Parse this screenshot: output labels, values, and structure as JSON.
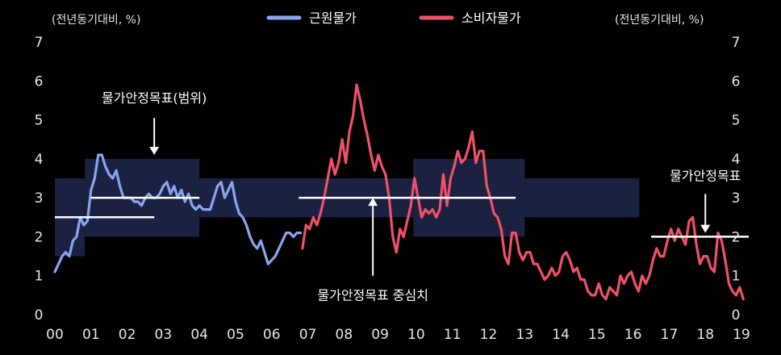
{
  "chart_data": {
    "type": "line",
    "title": "",
    "unit_left": "(전년동기대비, %)",
    "unit_right": "(전년동기대비, %)",
    "ylim": [
      0,
      7
    ],
    "xlim": [
      2000.0,
      2019.2
    ],
    "y_ticks": [
      "0",
      "1",
      "2",
      "3",
      "4",
      "5",
      "6",
      "7"
    ],
    "x_ticks": [
      {
        "label": "00",
        "value": 2000
      },
      {
        "label": "01",
        "value": 2001
      },
      {
        "label": "02",
        "value": 2002
      },
      {
        "label": "03",
        "value": 2003
      },
      {
        "label": "04",
        "value": 2004
      },
      {
        "label": "05",
        "value": 2005
      },
      {
        "label": "06",
        "value": 2006
      },
      {
        "label": "07",
        "value": 2007
      },
      {
        "label": "08",
        "value": 2008
      },
      {
        "label": "09",
        "value": 2009
      },
      {
        "label": "10",
        "value": 2010
      },
      {
        "label": "11",
        "value": 2011
      },
      {
        "label": "12",
        "value": 2012
      },
      {
        "label": "13",
        "value": 2013
      },
      {
        "label": "14",
        "value": 2014
      },
      {
        "label": "15",
        "value": 2015
      },
      {
        "label": "16",
        "value": 2016
      },
      {
        "label": "17",
        "value": 2017
      },
      {
        "label": "18",
        "value": 2018
      },
      {
        "label": "19",
        "value": 2019
      }
    ],
    "legend": [
      {
        "name": "근원물가",
        "color": "#8aa4f0"
      },
      {
        "name": "소비자물가",
        "color": "#f0506a"
      }
    ],
    "target_bands": [
      {
        "x0": 2000.0,
        "x1": 2000.83,
        "low": 1.5,
        "high": 3.5
      },
      {
        "x0": 2000.83,
        "x1": 2004.0,
        "low": 2.0,
        "high": 4.0
      },
      {
        "x0": 2004.0,
        "x1": 2006.83,
        "low": 2.5,
        "high": 3.5
      },
      {
        "x0": 2006.83,
        "x1": 2009.92,
        "low": 2.5,
        "high": 3.5
      },
      {
        "x0": 2009.92,
        "x1": 2013.0,
        "low": 2.0,
        "high": 4.0
      },
      {
        "x0": 2013.0,
        "x1": 2016.17,
        "low": 2.5,
        "high": 3.5
      }
    ],
    "target_lines": [
      {
        "x0": 2000.0,
        "x1": 2002.75,
        "y": 2.5
      },
      {
        "x0": 2001.0,
        "x1": 2004.0,
        "y": 3.0
      },
      {
        "x0": 2006.75,
        "x1": 2012.75,
        "y": 3.0
      },
      {
        "x0": 2016.5,
        "x1": 2019.2,
        "y": 2.0
      }
    ],
    "annotations": [
      {
        "text": "물가안정목표(범위)",
        "x": 2002.75,
        "y": 5.45,
        "arrow_from": 5.05,
        "arrow_to": 4.1
      },
      {
        "text": "물가안정목표 중심치",
        "x": 2008.8,
        "y": 0.38,
        "arrow_from": 1.0,
        "arrow_to": 3.0
      },
      {
        "text": "물가안정목표",
        "x": 2018.0,
        "y": 3.45,
        "arrow_from": 3.1,
        "arrow_to": 2.1
      }
    ],
    "series": [
      {
        "name": "근원물가",
        "color": "#8aa4f0",
        "x": [
          2000.0,
          2000.1,
          2000.2,
          2000.3,
          2000.4,
          2000.5,
          2000.6,
          2000.7,
          2000.8,
          2000.9,
          2001.0,
          2001.1,
          2001.2,
          2001.3,
          2001.4,
          2001.5,
          2001.6,
          2001.7,
          2001.8,
          2001.9,
          2002.0,
          2002.1,
          2002.2,
          2002.3,
          2002.4,
          2002.5,
          2002.6,
          2002.7,
          2002.8,
          2002.9,
          2003.0,
          2003.1,
          2003.2,
          2003.3,
          2003.4,
          2003.5,
          2003.6,
          2003.7,
          2003.8,
          2003.9,
          2004.0,
          2004.1,
          2004.2,
          2004.3,
          2004.4,
          2004.5,
          2004.6,
          2004.7,
          2004.8,
          2004.9,
          2005.0,
          2005.1,
          2005.2,
          2005.3,
          2005.4,
          2005.5,
          2005.6,
          2005.7,
          2005.8,
          2005.9,
          2006.0,
          2006.1,
          2006.2,
          2006.3,
          2006.4,
          2006.5,
          2006.6,
          2006.7,
          2006.8
        ],
        "values": [
          1.1,
          1.3,
          1.5,
          1.6,
          1.5,
          1.9,
          2.0,
          2.5,
          2.3,
          2.4,
          3.2,
          3.5,
          4.1,
          4.1,
          3.8,
          3.6,
          3.5,
          3.7,
          3.3,
          3.0,
          3.0,
          3.0,
          2.9,
          2.9,
          2.8,
          3.0,
          3.1,
          3.0,
          3.0,
          3.1,
          3.3,
          3.4,
          3.1,
          3.3,
          3.0,
          3.2,
          2.9,
          3.1,
          2.8,
          2.7,
          2.8,
          2.7,
          2.7,
          2.7,
          3.0,
          3.3,
          3.4,
          3.0,
          3.2,
          3.4,
          2.9,
          2.6,
          2.5,
          2.3,
          2.0,
          1.8,
          1.7,
          1.9,
          1.6,
          1.3,
          1.4,
          1.5,
          1.7,
          1.9,
          2.1,
          2.1,
          2.0,
          2.1,
          2.1
        ]
      },
      {
        "name": "소비자물가",
        "color": "#f0506a",
        "x": [
          2006.85,
          2006.95,
          2007.05,
          2007.15,
          2007.25,
          2007.35,
          2007.45,
          2007.55,
          2007.65,
          2007.75,
          2007.85,
          2007.95,
          2008.05,
          2008.15,
          2008.25,
          2008.35,
          2008.45,
          2008.55,
          2008.65,
          2008.75,
          2008.85,
          2008.95,
          2009.05,
          2009.15,
          2009.25,
          2009.35,
          2009.45,
          2009.55,
          2009.65,
          2009.75,
          2009.85,
          2009.95,
          2010.05,
          2010.15,
          2010.25,
          2010.35,
          2010.45,
          2010.55,
          2010.65,
          2010.75,
          2010.85,
          2010.95,
          2011.05,
          2011.15,
          2011.25,
          2011.35,
          2011.45,
          2011.55,
          2011.65,
          2011.75,
          2011.85,
          2011.95,
          2012.05,
          2012.15,
          2012.25,
          2012.35,
          2012.45,
          2012.55,
          2012.65,
          2012.75,
          2012.85,
          2012.95,
          2013.05,
          2013.15,
          2013.25,
          2013.35,
          2013.45,
          2013.55,
          2013.65,
          2013.75,
          2013.85,
          2013.95,
          2014.05,
          2014.15,
          2014.25,
          2014.35,
          2014.45,
          2014.55,
          2014.65,
          2014.75,
          2014.85,
          2014.95,
          2015.05,
          2015.15,
          2015.25,
          2015.35,
          2015.45,
          2015.55,
          2015.65,
          2015.75,
          2015.85,
          2015.95,
          2016.05,
          2016.15,
          2016.25,
          2016.35,
          2016.45,
          2016.55,
          2016.65,
          2016.75,
          2016.85,
          2016.95,
          2017.05,
          2017.15,
          2017.25,
          2017.35,
          2017.45,
          2017.55,
          2017.65,
          2017.75,
          2017.85,
          2017.95,
          2018.05,
          2018.15,
          2018.25,
          2018.35,
          2018.45,
          2018.55,
          2018.65,
          2018.75,
          2018.85,
          2018.95,
          2019.05
        ],
        "values": [
          1.7,
          2.3,
          2.2,
          2.5,
          2.3,
          2.6,
          3.0,
          3.5,
          4.0,
          3.6,
          3.9,
          4.5,
          3.9,
          4.7,
          5.1,
          5.9,
          5.5,
          5.0,
          4.6,
          4.1,
          3.7,
          4.1,
          3.8,
          3.6,
          3.0,
          2.0,
          1.6,
          2.2,
          2.0,
          2.4,
          2.8,
          3.5,
          3.0,
          2.5,
          2.7,
          2.6,
          2.7,
          2.5,
          2.7,
          3.6,
          2.8,
          3.5,
          3.8,
          4.2,
          3.9,
          4.0,
          4.3,
          4.7,
          3.9,
          4.2,
          4.2,
          3.3,
          3.0,
          2.6,
          2.5,
          2.2,
          1.5,
          1.3,
          2.1,
          2.1,
          1.6,
          1.4,
          1.6,
          1.6,
          1.3,
          1.3,
          1.1,
          0.9,
          1.0,
          1.2,
          1.0,
          1.1,
          1.5,
          1.6,
          1.4,
          1.1,
          1.2,
          0.9,
          0.9,
          0.6,
          0.5,
          0.5,
          0.8,
          0.5,
          0.4,
          0.7,
          0.6,
          0.5,
          1.0,
          0.8,
          1.0,
          1.1,
          0.8,
          0.6,
          1.0,
          0.8,
          1.0,
          1.4,
          1.7,
          1.5,
          1.5,
          1.9,
          2.2,
          1.9,
          2.2,
          2.0,
          1.8,
          2.4,
          2.5,
          1.8,
          1.3,
          1.5,
          1.5,
          1.2,
          1.1,
          2.1,
          1.9,
          1.4,
          0.8,
          0.6,
          0.5,
          0.7,
          0.4
        ]
      }
    ]
  }
}
